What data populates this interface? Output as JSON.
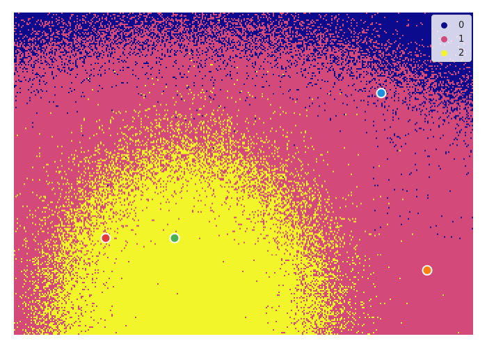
{
  "chart_data": {
    "type": "heatmap",
    "title": "",
    "xlabel": "",
    "ylabel": "",
    "axes_visible": false,
    "grid": false,
    "legend_position": "top-right",
    "classes": [
      {
        "label": "0",
        "color": "#0b0b8e"
      },
      {
        "label": "1",
        "color": "#d2497a"
      },
      {
        "label": "2",
        "color": "#f2f52a"
      }
    ],
    "points": [
      {
        "name": "blue-point",
        "color": "#1f8fe0",
        "x": 0.8,
        "y": 0.75
      },
      {
        "name": "red-point",
        "color": "#e23b3b",
        "x": 0.2,
        "y": 0.3
      },
      {
        "name": "green-point",
        "color": "#4caf50",
        "x": 0.35,
        "y": 0.3
      },
      {
        "name": "orange-point",
        "color": "#ff7f0e",
        "x": 0.9,
        "y": 0.2
      }
    ]
  }
}
